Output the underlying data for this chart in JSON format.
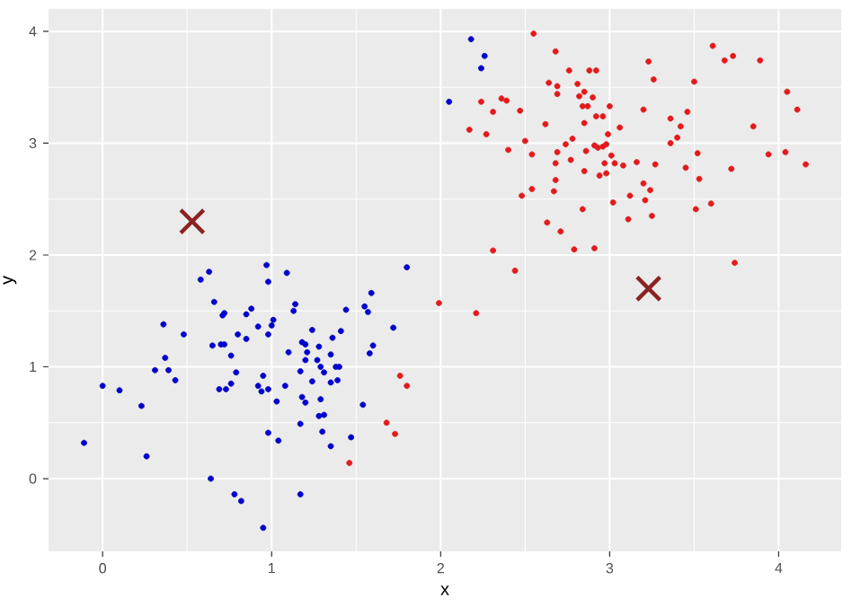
{
  "chart_data": {
    "type": "scatter",
    "xlabel": "x",
    "ylabel": "y",
    "xlim": [
      -0.32,
      4.37
    ],
    "ylim": [
      -0.65,
      4.2
    ],
    "xticks": [
      0,
      1,
      2,
      3,
      4
    ],
    "yticks": [
      0,
      1,
      2,
      3,
      4
    ],
    "grid": true,
    "marker": "circle",
    "series": [
      {
        "color": "#0000cd",
        "x": [
          -0.11,
          0.0,
          0.1,
          0.23,
          0.26,
          0.31,
          0.36,
          0.37,
          0.39,
          0.43,
          0.48,
          0.58,
          0.63,
          0.65,
          0.66,
          0.64,
          0.71,
          0.72,
          0.69,
          0.73,
          0.7,
          0.72,
          0.76,
          0.76,
          0.79,
          0.8,
          0.78,
          0.82,
          0.85,
          0.85,
          0.88,
          0.92,
          0.92,
          0.94,
          0.95,
          0.97,
          0.98,
          0.98,
          0.98,
          0.98,
          1.0,
          1.01,
          0.95,
          1.03,
          1.04,
          1.08,
          1.09,
          1.1,
          1.13,
          1.14,
          1.17,
          1.17,
          1.17,
          1.18,
          1.2,
          1.2,
          1.18,
          1.2,
          1.21,
          1.24,
          1.24,
          1.27,
          1.28,
          1.29,
          1.29,
          1.28,
          1.31,
          1.3,
          1.31,
          1.35,
          1.35,
          1.35,
          1.36,
          1.39,
          1.38,
          1.4,
          1.41,
          1.44,
          1.47,
          1.54,
          1.55,
          1.57,
          1.59,
          1.58,
          1.6,
          1.72,
          1.8,
          2.18,
          2.26,
          2.24,
          2.05
        ],
        "values": [
          0.32,
          0.83,
          0.79,
          0.65,
          0.2,
          0.97,
          1.38,
          1.08,
          0.97,
          0.88,
          1.29,
          1.78,
          1.85,
          1.19,
          1.58,
          0.0,
          1.46,
          1.48,
          0.8,
          0.8,
          1.2,
          1.2,
          1.1,
          0.85,
          0.95,
          1.29,
          -0.14,
          -0.2,
          1.25,
          1.47,
          1.52,
          1.36,
          0.83,
          0.78,
          0.92,
          1.91,
          1.76,
          1.29,
          0.8,
          0.41,
          1.37,
          1.42,
          -0.44,
          0.69,
          0.34,
          0.83,
          1.84,
          1.13,
          1.5,
          1.56,
          -0.14,
          0.96,
          0.49,
          1.22,
          1.2,
          1.06,
          0.73,
          0.68,
          1.13,
          0.87,
          1.33,
          1.06,
          1.18,
          1.0,
          0.71,
          0.56,
          0.57,
          0.42,
          0.95,
          1.11,
          0.86,
          0.29,
          1.26,
          0.88,
          1.0,
          1.0,
          1.32,
          1.51,
          0.37,
          0.66,
          1.54,
          1.49,
          1.66,
          1.12,
          1.19,
          1.35,
          1.89,
          3.93,
          3.78,
          3.67,
          3.37
        ]
      },
      {
        "color": "#e31a1c",
        "x": [
          1.46,
          1.68,
          1.73,
          1.76,
          1.8,
          2.55,
          2.68,
          2.64,
          2.69,
          2.69,
          2.76,
          2.81,
          2.88,
          2.92,
          2.85,
          2.82,
          2.9,
          2.84,
          2.87,
          3.0,
          2.92,
          2.96,
          2.85,
          2.99,
          3.06,
          2.78,
          2.74,
          2.91,
          2.93,
          2.96,
          2.98,
          3.01,
          2.86,
          2.69,
          2.77,
          2.68,
          2.85,
          2.97,
          3.03,
          3.08,
          3.16,
          3.27,
          2.94,
          2.98,
          2.68,
          2.67,
          2.54,
          2.48,
          2.54,
          2.5,
          2.4,
          2.62,
          2.47,
          2.36,
          2.39,
          2.31,
          2.24,
          2.17,
          2.27,
          2.84,
          2.63,
          2.71,
          2.79,
          2.91,
          2.31,
          2.44,
          1.99,
          2.21,
          3.02,
          3.12,
          3.2,
          3.24,
          3.21,
          3.11,
          3.25,
          3.2,
          3.23,
          3.26,
          3.36,
          3.42,
          3.46,
          3.36,
          3.4,
          3.5,
          3.52,
          3.45,
          3.53,
          3.51,
          3.6,
          3.61,
          3.68,
          3.73,
          3.89,
          3.72,
          3.85,
          3.94,
          4.04,
          4.05,
          4.11,
          4.16,
          3.74
        ],
        "values": [
          0.14,
          0.5,
          0.4,
          0.92,
          0.83,
          3.98,
          3.82,
          3.54,
          3.51,
          3.44,
          3.65,
          3.53,
          3.65,
          3.65,
          3.46,
          3.42,
          3.41,
          3.33,
          3.33,
          3.33,
          3.24,
          3.24,
          3.18,
          3.08,
          3.14,
          3.04,
          2.99,
          2.98,
          2.96,
          2.97,
          2.99,
          2.89,
          2.93,
          2.92,
          2.85,
          2.82,
          2.75,
          2.82,
          2.82,
          2.8,
          2.83,
          2.81,
          2.71,
          2.73,
          2.67,
          2.57,
          2.59,
          2.53,
          2.9,
          3.02,
          2.94,
          3.17,
          3.29,
          3.4,
          3.38,
          3.28,
          3.37,
          3.12,
          3.08,
          2.41,
          2.29,
          2.21,
          2.05,
          2.06,
          2.04,
          1.86,
          1.57,
          1.48,
          2.47,
          2.53,
          2.64,
          2.58,
          2.49,
          2.32,
          2.35,
          3.3,
          3.73,
          3.57,
          3.22,
          3.15,
          3.28,
          3.0,
          3.05,
          3.55,
          2.91,
          2.78,
          2.68,
          2.41,
          2.46,
          3.87,
          3.74,
          3.78,
          3.74,
          2.77,
          3.15,
          2.9,
          2.92,
          3.46,
          3.3,
          2.81,
          1.93
        ]
      },
      {
        "color": "#8b2323",
        "marker": "cross",
        "x": [
          0.53,
          3.23
        ],
        "values": [
          2.3,
          1.7
        ]
      }
    ]
  }
}
